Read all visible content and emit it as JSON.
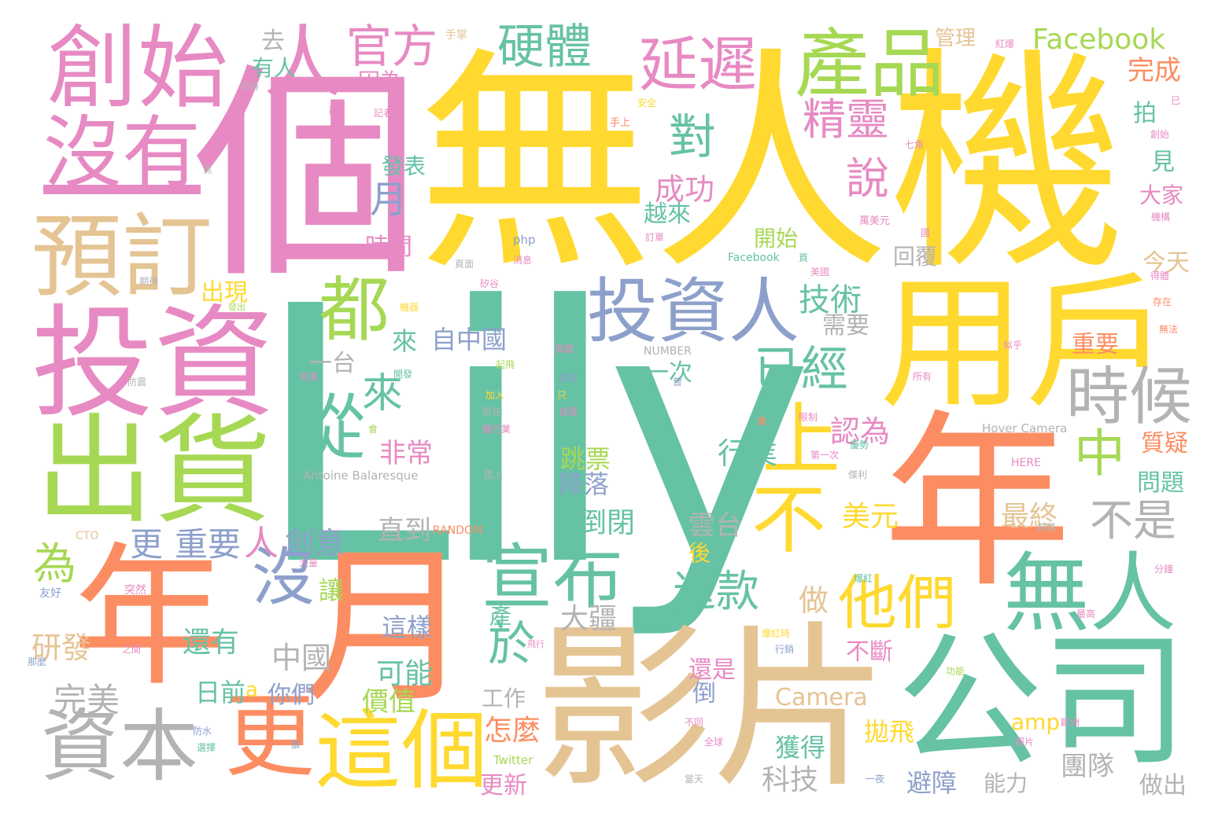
{
  "palette": {
    "teal": "#66c2a5",
    "orange": "#fc8d62",
    "blue": "#8da0cb",
    "pink": "#e78ac3",
    "green": "#a6d854",
    "yellow": "#ffd92f",
    "tan": "#e5c494",
    "gray": "#b3b3b3"
  },
  "words": [
    {
      "text": "Lily",
      "color": "teal"
    },
    {
      "text": "無人機",
      "color": "yellow"
    },
    {
      "text": "個",
      "color": "pink"
    },
    {
      "text": "年",
      "color": "orange"
    },
    {
      "text": "月",
      "color": "orange"
    },
    {
      "text": "年",
      "color": "orange"
    },
    {
      "text": "影片",
      "color": "tan"
    },
    {
      "text": "公司",
      "color": "teal"
    },
    {
      "text": "投資",
      "color": "pink"
    },
    {
      "text": "出貨",
      "color": "green"
    },
    {
      "text": "用戶",
      "color": "yellow"
    },
    {
      "text": "創始",
      "color": "pink"
    },
    {
      "text": "人",
      "color": "pink"
    },
    {
      "text": "預訂",
      "color": "tan"
    },
    {
      "text": "沒有",
      "color": "pink"
    },
    {
      "text": "產品",
      "color": "green"
    },
    {
      "text": "這個",
      "color": "yellow"
    },
    {
      "text": "更",
      "color": "orange"
    },
    {
      "text": "資本",
      "color": "gray"
    },
    {
      "text": "宣布",
      "color": "teal"
    },
    {
      "text": "無人",
      "color": "teal"
    },
    {
      "text": "投資人",
      "color": "blue"
    },
    {
      "text": "不",
      "color": "yellow"
    },
    {
      "text": "上",
      "color": "yellow"
    },
    {
      "text": "時候",
      "color": "gray"
    },
    {
      "text": "他們",
      "color": "yellow"
    },
    {
      "text": "都",
      "color": "green"
    },
    {
      "text": "從",
      "color": "teal"
    },
    {
      "text": "沒",
      "color": "blue"
    },
    {
      "text": "延遲",
      "color": "pink"
    },
    {
      "text": "官方",
      "color": "pink"
    },
    {
      "text": "硬體",
      "color": "teal"
    },
    {
      "text": "對",
      "color": "teal"
    },
    {
      "text": "說",
      "color": "pink"
    },
    {
      "text": "精靈",
      "color": "pink"
    },
    {
      "text": "已經",
      "color": "teal"
    },
    {
      "text": "中",
      "color": "green"
    },
    {
      "text": "不是",
      "color": "gray"
    },
    {
      "text": "退款",
      "color": "teal"
    },
    {
      "text": "Facebook",
      "color": "green"
    },
    {
      "text": "於",
      "color": "teal"
    },
    {
      "text": "來",
      "color": "teal"
    },
    {
      "text": "月",
      "color": "teal"
    },
    {
      "text": "成功",
      "color": "pink"
    },
    {
      "text": "越來",
      "color": "teal"
    },
    {
      "text": "開始",
      "color": "green"
    },
    {
      "text": "技術",
      "color": "teal"
    },
    {
      "text": "需要",
      "color": "gray"
    },
    {
      "text": "回覆",
      "color": "gray"
    },
    {
      "text": "認為",
      "color": "pink"
    },
    {
      "text": "行業",
      "color": "teal"
    },
    {
      "text": "美元",
      "color": "yellow"
    },
    {
      "text": "最終",
      "color": "tan"
    },
    {
      "text": "雲台",
      "color": "gray"
    },
    {
      "text": "倒閉",
      "color": "teal"
    },
    {
      "text": "跳票",
      "color": "green"
    },
    {
      "text": "降落",
      "color": "blue"
    },
    {
      "text": "大疆",
      "color": "gray"
    },
    {
      "text": "做",
      "color": "tan"
    },
    {
      "text": "可能",
      "color": "teal"
    },
    {
      "text": "價值",
      "color": "green"
    },
    {
      "text": "這樣",
      "color": "blue"
    },
    {
      "text": "中國",
      "color": "gray"
    },
    {
      "text": "還有",
      "color": "teal"
    },
    {
      "text": "研發",
      "color": "tan"
    },
    {
      "text": "日前",
      "color": "teal"
    },
    {
      "text": "你們",
      "color": "blue"
    },
    {
      "text": "完美",
      "color": "gray"
    },
    {
      "text": "更",
      "color": "blue"
    },
    {
      "text": "重要",
      "color": "blue"
    },
    {
      "text": "人",
      "color": "pink"
    },
    {
      "text": "創意",
      "color": "blue"
    },
    {
      "text": "直到",
      "color": "gray"
    },
    {
      "text": "為",
      "color": "green"
    },
    {
      "text": "出現",
      "color": "yellow"
    },
    {
      "text": "非常",
      "color": "pink"
    },
    {
      "text": "來",
      "color": "teal"
    },
    {
      "text": "自中國",
      "color": "blue"
    },
    {
      "text": "一台",
      "color": "gray"
    },
    {
      "text": "時間",
      "color": "pink"
    },
    {
      "text": "去",
      "color": "gray"
    },
    {
      "text": "有人",
      "color": "teal"
    },
    {
      "text": "因為",
      "color": "pink"
    },
    {
      "text": "發表",
      "color": "teal"
    },
    {
      "text": "完成",
      "color": "orange"
    },
    {
      "text": "管理",
      "color": "tan"
    },
    {
      "text": "拍",
      "color": "teal"
    },
    {
      "text": "見",
      "color": "teal"
    },
    {
      "text": "大家",
      "color": "pink"
    },
    {
      "text": "今天",
      "color": "tan"
    },
    {
      "text": "重要",
      "color": "orange"
    },
    {
      "text": "質疑",
      "color": "orange"
    },
    {
      "text": "問題",
      "color": "teal"
    },
    {
      "text": "工作",
      "color": "gray"
    },
    {
      "text": "怎麼",
      "color": "orange"
    },
    {
      "text": "更新",
      "color": "pink"
    },
    {
      "text": "獲得",
      "color": "teal"
    },
    {
      "text": "科技",
      "color": "gray"
    },
    {
      "text": "拋飛",
      "color": "yellow"
    },
    {
      "text": "避障",
      "color": "blue"
    },
    {
      "text": "能力",
      "color": "gray"
    },
    {
      "text": "團隊",
      "color": "gray"
    },
    {
      "text": "做出",
      "color": "gray"
    },
    {
      "text": "不斷",
      "color": "pink"
    },
    {
      "text": "還是",
      "color": "pink"
    },
    {
      "text": "倒",
      "color": "blue"
    },
    {
      "text": "Camera",
      "color": "tan"
    },
    {
      "text": "amp",
      "color": "yellow"
    },
    {
      "text": "產",
      "color": "teal"
    },
    {
      "text": "後",
      "color": "yellow"
    },
    {
      "text": "一次",
      "color": "teal"
    },
    {
      "text": "a",
      "color": "yellow"
    },
    {
      "text": "讓",
      "color": "green"
    },
    {
      "text": "Antoine Balaresque",
      "color": "gray"
    },
    {
      "text": "Hover Camera",
      "color": "gray"
    },
    {
      "text": "Facebook",
      "color": "teal"
    },
    {
      "text": "Twitter",
      "color": "green"
    },
    {
      "text": "RANDOM",
      "color": "orange"
    },
    {
      "text": "NUMBER",
      "color": "gray"
    },
    {
      "text": "HERE",
      "color": "pink"
    },
    {
      "text": "CTO",
      "color": "tan"
    },
    {
      "text": "php",
      "color": "blue"
    },
    {
      "text": "手掌",
      "color": "tan"
    },
    {
      "text": "紅爆",
      "color": "pink"
    },
    {
      "text": "同時",
      "color": "gray"
    },
    {
      "text": "安全",
      "color": "yellow"
    },
    {
      "text": "手上",
      "color": "orange"
    },
    {
      "text": "記者",
      "color": "pink"
    },
    {
      "text": "七角",
      "color": "pink"
    },
    {
      "text": "創始",
      "color": "pink"
    },
    {
      "text": "萬美元",
      "color": "pink"
    },
    {
      "text": "訂單",
      "color": "pink"
    },
    {
      "text": "消息",
      "color": "pink"
    },
    {
      "text": "美國",
      "color": "pink"
    },
    {
      "text": "矽谷",
      "color": "pink"
    },
    {
      "text": "期待",
      "color": "gray"
    },
    {
      "text": "發出",
      "color": "green"
    },
    {
      "text": "機器",
      "color": "yellow"
    },
    {
      "text": "防震",
      "color": "gray"
    },
    {
      "text": "國上",
      "color": "gray"
    },
    {
      "text": "第一次",
      "color": "pink"
    },
    {
      "text": "限制",
      "color": "pink"
    },
    {
      "text": "優勢",
      "color": "teal"
    },
    {
      "text": "所有",
      "color": "pink"
    },
    {
      "text": "似乎",
      "color": "pink"
    },
    {
      "text": "無法",
      "color": "orange"
    },
    {
      "text": "存在",
      "color": "orange"
    },
    {
      "text": "得體",
      "color": "pink"
    },
    {
      "text": "機構",
      "color": "pink"
    },
    {
      "text": "友好",
      "color": "blue"
    },
    {
      "text": "突然",
      "color": "pink"
    },
    {
      "text": "大量",
      "color": "pink"
    },
    {
      "text": "之間",
      "color": "pink"
    },
    {
      "text": "那麼",
      "color": "blue"
    },
    {
      "text": "防水",
      "color": "blue"
    },
    {
      "text": "選擇",
      "color": "teal"
    },
    {
      "text": "讀",
      "color": "blue"
    },
    {
      "text": "飛行",
      "color": "pink"
    },
    {
      "text": "不同",
      "color": "pink"
    },
    {
      "text": "全球",
      "color": "pink"
    },
    {
      "text": "當天",
      "color": "gray"
    },
    {
      "text": "功能",
      "color": "green"
    },
    {
      "text": "照片",
      "color": "pink"
    },
    {
      "text": "歐洲",
      "color": "pink"
    },
    {
      "text": "最高",
      "color": "pink"
    },
    {
      "text": "分鐘",
      "color": "pink"
    },
    {
      "text": "創業",
      "color": "gray"
    },
    {
      "text": "傑利",
      "color": "gray"
    },
    {
      "text": "爆紅時",
      "color": "yellow"
    },
    {
      "text": "行銷",
      "color": "blue"
    },
    {
      "text": "爆紅",
      "color": "teal"
    },
    {
      "text": "起飛",
      "color": "green"
    },
    {
      "text": "機行業",
      "color": "pink"
    },
    {
      "text": "現在",
      "color": "gray"
    },
    {
      "text": "厚度",
      "color": "blue"
    },
    {
      "text": "自發",
      "color": "pink"
    },
    {
      "text": "加入",
      "color": "yellow"
    },
    {
      "text": "兌換",
      "color": "pink"
    },
    {
      "text": "貢獻",
      "color": "pink"
    },
    {
      "text": "頁面",
      "color": "gray"
    },
    {
      "text": "開發",
      "color": "teal"
    },
    {
      "text": "一夜",
      "color": "blue"
    },
    {
      "text": "已",
      "color": "pink"
    },
    {
      "text": "只",
      "color": "yellow"
    },
    {
      "text": "會",
      "color": "green"
    },
    {
      "text": "曾",
      "color": "blue"
    },
    {
      "text": "翻",
      "color": "pink"
    },
    {
      "text": "黑",
      "color": "gray"
    },
    {
      "text": "國",
      "color": "pink"
    },
    {
      "text": "頁",
      "color": "teal"
    },
    {
      "text": "擴",
      "color": "orange"
    }
  ]
}
